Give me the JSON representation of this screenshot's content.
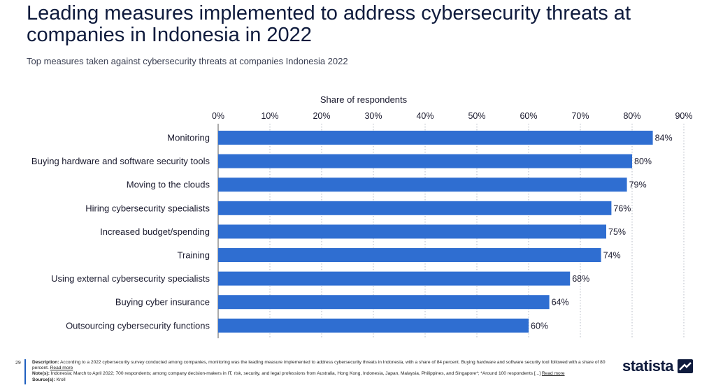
{
  "header": {
    "title": "Leading measures implemented to address cybersecurity threats at companies in Indonesia in 2022",
    "subtitle": "Top measures taken against cybersecurity threats at companies Indonesia 2022"
  },
  "chart_data": {
    "type": "bar",
    "orientation": "horizontal",
    "xlabel": "Share of respondents",
    "xlim": [
      0,
      90
    ],
    "x_ticks": [
      "0%",
      "10%",
      "20%",
      "30%",
      "40%",
      "50%",
      "60%",
      "70%",
      "80%",
      "90%"
    ],
    "grid": true,
    "categories": [
      "Monitoring",
      "Buying hardware and software security tools",
      "Moving to the clouds",
      "Hiring cybersecurity specialists",
      "Increased budget/spending",
      "Training",
      "Using external cybersecurity specialists",
      "Buying cyber insurance",
      "Outsourcing cybersecurity functions"
    ],
    "values": [
      84,
      80,
      79,
      76,
      75,
      74,
      68,
      64,
      60
    ],
    "value_labels": [
      "84%",
      "80%",
      "79%",
      "76%",
      "75%",
      "74%",
      "68%",
      "64%",
      "60%"
    ],
    "bar_color": "#2f6ed1"
  },
  "footer": {
    "page_number": "29",
    "description_label": "Description:",
    "description": "According to a 2022 cybersecurity survey conducted among companies, monitoring was the leading measure implemented to address cybersecurity threats in Indonesia, with a share of 84 percent. Buying hardware and software security tool followed with a share of 80 percent.",
    "description_more": "Read more",
    "notes_label": "Note(s):",
    "notes": "Indonesia; March to April 2022; 700 respondents; among company decision-makers in IT, risk, security, and legal professions from Australia, Hong Kong, Indonesia, Japan, Malaysia, Philippines, and Singapore*; *Around 100 respondents [...]",
    "notes_more": "Read more",
    "source_label": "Source(s):",
    "source": "Kroll",
    "brand": "statista"
  }
}
